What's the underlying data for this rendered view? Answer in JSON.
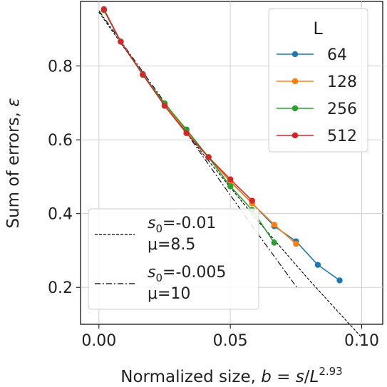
{
  "chart_data": {
    "type": "line",
    "xlabel": "Normalized size, b = s/L^2.93",
    "xlabel_parts": {
      "prefix": "Normalized size, ",
      "var_b": "b",
      "equals": " = ",
      "var_s": "s",
      "slash": "/",
      "var_L": "L",
      "exponent": "2.93"
    },
    "ylabel": "Sum of errors, ε",
    "ylabel_parts": {
      "prefix": "Sum of errors, ",
      "symbol": "ε"
    },
    "xlim": [
      -0.007,
      0.108
    ],
    "ylim": [
      0.1,
      0.975
    ],
    "x_ticks": [
      0.0,
      0.05,
      0.1
    ],
    "x_tick_labels": [
      "0.00",
      "0.05",
      "0.10"
    ],
    "y_ticks": [
      0.2,
      0.4,
      0.6,
      0.8
    ],
    "y_tick_labels": [
      "0.2",
      "0.4",
      "0.6",
      "0.8"
    ],
    "grid": true,
    "legend_title": "L",
    "legend_location": "top-right",
    "series": [
      {
        "name": "64",
        "color": "#1f77b4",
        "x": [
          0.0019,
          0.0083,
          0.0167,
          0.025,
          0.0333,
          0.0417,
          0.05,
          0.0583,
          0.0667,
          0.075,
          0.0833,
          0.0916
        ],
        "y": [
          0.952,
          0.866,
          0.778,
          0.698,
          0.628,
          0.552,
          0.487,
          0.428,
          0.366,
          0.325,
          0.261,
          0.219
        ]
      },
      {
        "name": "128",
        "color": "#ff7f0e",
        "x": [
          0.0019,
          0.0083,
          0.0167,
          0.025,
          0.0333,
          0.0417,
          0.05,
          0.0583,
          0.0667,
          0.075
        ],
        "y": [
          0.951,
          0.866,
          0.776,
          0.694,
          0.624,
          0.553,
          0.486,
          0.428,
          0.37,
          0.318
        ]
      },
      {
        "name": "256",
        "color": "#2ca02c",
        "x": [
          0.0019,
          0.0083,
          0.0167,
          0.025,
          0.0333,
          0.0417,
          0.05,
          0.0583,
          0.0667
        ],
        "y": [
          0.951,
          0.866,
          0.776,
          0.699,
          0.627,
          0.553,
          0.474,
          0.41,
          0.321
        ]
      },
      {
        "name": "512",
        "color": "#d62728",
        "x": [
          0.0019,
          0.0083,
          0.0167,
          0.025,
          0.0333,
          0.0417,
          0.05,
          0.0583
        ],
        "y": [
          0.954,
          0.866,
          0.777,
          0.692,
          0.618,
          0.553,
          0.493,
          0.435
        ]
      }
    ],
    "reference_lines": [
      {
        "s0_label": "s",
        "s0_sub": "0",
        "s0_value": "=-0.01",
        "mu_label": "μ=8.5",
        "style": "dashed",
        "color": "#000000",
        "x": [
          0.0,
          0.02,
          0.04,
          0.06,
          0.08,
          0.1
        ],
        "y": [
          0.946,
          0.744,
          0.558,
          0.384,
          0.22,
          0.064
        ]
      },
      {
        "s0_label": "s",
        "s0_sub": "0",
        "s0_value": "=-0.005",
        "mu_label": "μ=10",
        "style": "dashdot",
        "color": "#000000",
        "x": [
          0.0,
          0.015,
          0.03,
          0.045,
          0.06,
          0.0755
        ],
        "y": [
          0.95,
          0.801,
          0.652,
          0.5,
          0.35,
          0.198
        ]
      }
    ],
    "lower_legend_location": "bottom-left"
  }
}
